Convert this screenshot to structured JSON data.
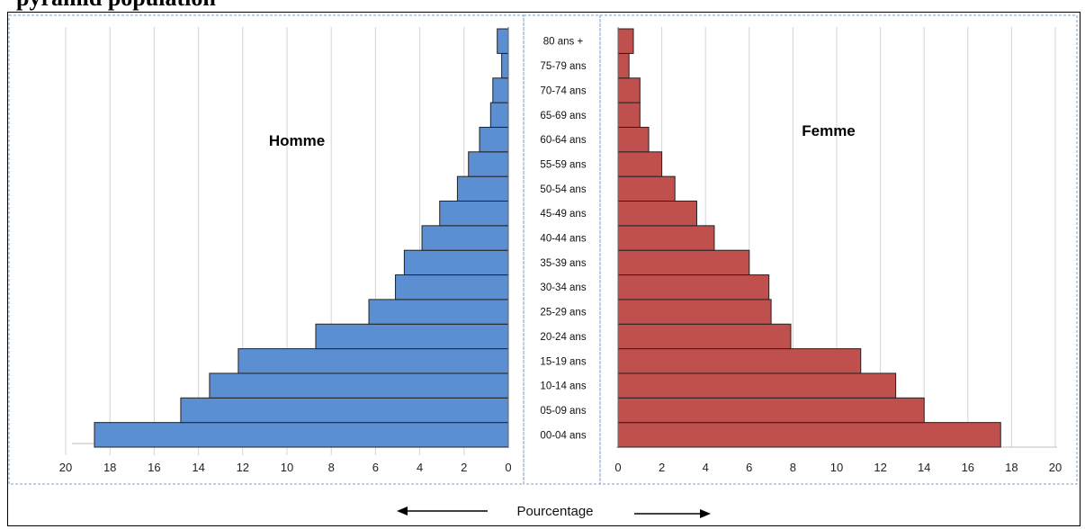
{
  "header": {
    "text": "pyramid population"
  },
  "chart_data": [
    {
      "type": "bar",
      "orientation": "horizontal",
      "direction": "leftward",
      "title": "Homme",
      "categories": [
        "00-04 ans",
        "05-09 ans",
        "10-14 ans",
        "15-19 ans",
        "20-24 ans",
        "25-29 ans",
        "30-34 ans",
        "35-39 ans",
        "40-44 ans",
        "45-49 ans",
        "50-54 ans",
        "55-59 ans",
        "60-64 ans",
        "65-69 ans",
        "70-74 ans",
        "75-79 ans",
        "80 ans +"
      ],
      "values": [
        18.7,
        14.8,
        13.5,
        12.2,
        8.7,
        6.3,
        5.1,
        4.7,
        3.9,
        3.1,
        2.3,
        1.8,
        1.3,
        0.8,
        0.7,
        0.3,
        0.5
      ],
      "xlim": [
        0,
        20
      ],
      "ticks": [
        20,
        18,
        16,
        14,
        12,
        10,
        8,
        6,
        4,
        2,
        0
      ],
      "xlabel": "Pourcentage",
      "grid": true,
      "color": "#5b8fd1"
    },
    {
      "type": "bar",
      "orientation": "horizontal",
      "direction": "rightward",
      "title": "Femme",
      "categories": [
        "00-04 ans",
        "05-09 ans",
        "10-14 ans",
        "15-19 ans",
        "20-24 ans",
        "25-29 ans",
        "30-34 ans",
        "35-39 ans",
        "40-44 ans",
        "45-49 ans",
        "50-54 ans",
        "55-59 ans",
        "60-64 ans",
        "65-69 ans",
        "70-74 ans",
        "75-79 ans",
        "80 ans +"
      ],
      "values": [
        17.5,
        14.0,
        12.7,
        11.1,
        7.9,
        7.0,
        6.9,
        6.0,
        4.4,
        3.6,
        2.6,
        2.0,
        1.4,
        1.0,
        1.0,
        0.5,
        0.7
      ],
      "xlim": [
        0,
        20
      ],
      "ticks": [
        0,
        2,
        4,
        6,
        8,
        10,
        12,
        14,
        16,
        18,
        20
      ],
      "xlabel": "Pourcentage",
      "grid": true,
      "color": "#c0504d"
    }
  ]
}
